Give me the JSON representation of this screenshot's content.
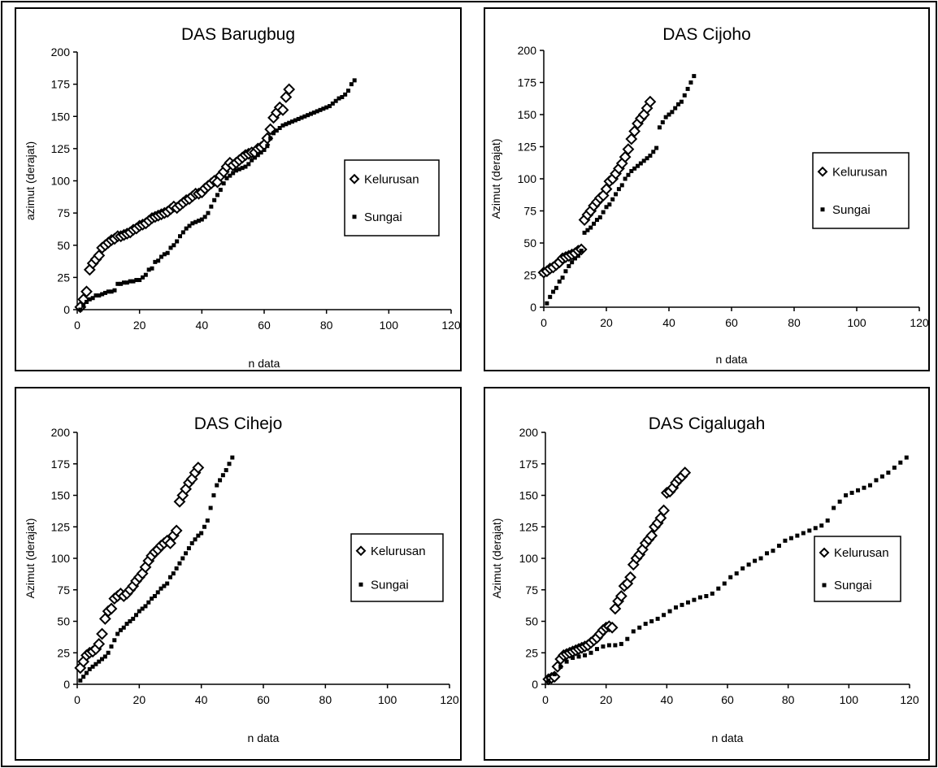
{
  "chart_data": [
    {
      "type": "scatter",
      "title": "DAS Barugbug",
      "xlabel": "n data",
      "ylabel": "azimut (derajat)",
      "xlim": [
        0,
        120
      ],
      "ylim": [
        0,
        200
      ],
      "x_ticks": [
        0,
        20,
        40,
        60,
        80,
        100,
        120
      ],
      "y_ticks": [
        0,
        25,
        50,
        75,
        100,
        125,
        150,
        175,
        200
      ],
      "grid": false,
      "legend": "right",
      "series": [
        {
          "name": "Kelurusan",
          "marker": "open-diamond",
          "x": [
            1,
            2,
            3,
            4,
            5,
            6,
            7,
            8,
            9,
            10,
            11,
            12,
            13,
            14,
            15,
            16,
            17,
            18,
            19,
            20,
            21,
            22,
            23,
            24,
            25,
            26,
            27,
            28,
            29,
            30,
            31,
            32,
            33,
            34,
            35,
            36,
            37,
            38,
            39,
            40,
            41,
            42,
            43,
            44,
            45,
            46,
            47,
            48,
            49,
            50,
            51,
            52,
            53,
            54,
            55,
            56,
            57,
            58,
            59,
            60,
            61,
            62,
            63,
            64,
            65,
            66,
            67,
            68
          ],
          "y": [
            2,
            8,
            14,
            31,
            36,
            39,
            42,
            48,
            50,
            52,
            54,
            55,
            57,
            57,
            58,
            59,
            60,
            62,
            63,
            65,
            66,
            67,
            69,
            71,
            72,
            73,
            74,
            75,
            76,
            78,
            80,
            79,
            81,
            83,
            85,
            86,
            88,
            90,
            90,
            91,
            94,
            96,
            98,
            100,
            99,
            104,
            107,
            111,
            114,
            112,
            114,
            116,
            118,
            120,
            121,
            122,
            122,
            125,
            126,
            128,
            133,
            140,
            149,
            153,
            157,
            155,
            165,
            171
          ],
          "color": "#000000"
        },
        {
          "name": "Sungai",
          "marker": "dot",
          "x": [
            1,
            2,
            3,
            4,
            5,
            6,
            7,
            8,
            9,
            10,
            11,
            12,
            13,
            14,
            15,
            16,
            17,
            18,
            19,
            20,
            21,
            22,
            23,
            24,
            25,
            26,
            27,
            28,
            29,
            30,
            31,
            32,
            33,
            34,
            35,
            36,
            37,
            38,
            39,
            40,
            41,
            42,
            43,
            44,
            45,
            46,
            47,
            48,
            49,
            50,
            51,
            52,
            53,
            54,
            55,
            56,
            57,
            58,
            59,
            60,
            61,
            62,
            63,
            64,
            65,
            66,
            67,
            68,
            69,
            70,
            71,
            72,
            73,
            74,
            75,
            76,
            77,
            78,
            79,
            80,
            81,
            82,
            83,
            84,
            85,
            86,
            87,
            88,
            89
          ],
          "y": [
            0,
            3,
            6,
            8,
            9,
            11,
            11,
            12,
            13,
            14,
            14,
            15,
            20,
            20,
            21,
            21,
            22,
            22,
            23,
            23,
            25,
            27,
            31,
            32,
            37,
            38,
            41,
            43,
            44,
            48,
            50,
            53,
            57,
            60,
            63,
            65,
            67,
            68,
            69,
            70,
            72,
            75,
            80,
            85,
            89,
            93,
            98,
            102,
            104,
            106,
            108,
            109,
            110,
            111,
            113,
            116,
            118,
            120,
            122,
            124,
            127,
            133,
            137,
            139,
            141,
            143,
            144,
            145,
            146,
            147,
            148,
            149,
            150,
            151,
            152,
            153,
            154,
            155,
            156,
            157,
            158,
            160,
            162,
            164,
            165,
            167,
            170,
            175,
            178
          ],
          "color": "#000000"
        }
      ]
    },
    {
      "type": "scatter",
      "title": "DAS Cijoho",
      "xlabel": "n data",
      "ylabel": "Azimut (derajat)",
      "xlim": [
        0,
        120
      ],
      "ylim": [
        0,
        200
      ],
      "x_ticks": [
        0,
        20,
        40,
        60,
        80,
        100,
        120
      ],
      "y_ticks": [
        0,
        25,
        50,
        75,
        100,
        125,
        150,
        175,
        200
      ],
      "grid": false,
      "legend": "right",
      "series": [
        {
          "name": "Kelurusan",
          "marker": "open-diamond",
          "x": [
            0,
            1,
            2,
            3,
            4,
            5,
            6,
            7,
            8,
            9,
            10,
            11,
            12,
            13,
            14,
            15,
            16,
            17,
            18,
            19,
            20,
            21,
            22,
            23,
            24,
            25,
            26,
            27,
            28,
            29,
            30,
            31,
            32,
            33,
            34
          ],
          "y": [
            27,
            28,
            30,
            31,
            33,
            35,
            38,
            39,
            40,
            41,
            42,
            44,
            45,
            68,
            72,
            75,
            79,
            82,
            85,
            87,
            92,
            98,
            100,
            104,
            108,
            112,
            117,
            123,
            131,
            137,
            143,
            147,
            150,
            155,
            160
          ],
          "color": "#000000"
        },
        {
          "name": "Sungai",
          "marker": "dot",
          "x": [
            1,
            2,
            3,
            4,
            5,
            6,
            7,
            8,
            9,
            10,
            11,
            12,
            13,
            14,
            15,
            16,
            17,
            18,
            19,
            20,
            21,
            22,
            23,
            24,
            25,
            26,
            27,
            28,
            29,
            30,
            31,
            32,
            33,
            34,
            35,
            36,
            37,
            38,
            39,
            40,
            41,
            42,
            43,
            44,
            45,
            46,
            47,
            48
          ],
          "y": [
            3,
            8,
            12,
            15,
            20,
            23,
            28,
            32,
            35,
            38,
            40,
            44,
            58,
            60,
            62,
            65,
            68,
            70,
            74,
            78,
            80,
            84,
            88,
            92,
            95,
            100,
            103,
            106,
            108,
            110,
            112,
            114,
            116,
            118,
            121,
            124,
            140,
            144,
            148,
            150,
            152,
            155,
            158,
            160,
            165,
            170,
            175,
            180
          ],
          "color": "#000000"
        }
      ]
    },
    {
      "type": "scatter",
      "title": "DAS Cihejo",
      "xlabel": "n data",
      "ylabel": "Azimut (derajat)",
      "xlim": [
        0,
        120
      ],
      "ylim": [
        0,
        200
      ],
      "x_ticks": [
        0,
        20,
        40,
        60,
        80,
        100,
        120
      ],
      "y_ticks": [
        0,
        25,
        50,
        75,
        100,
        125,
        150,
        175,
        200
      ],
      "grid": false,
      "legend": "right",
      "series": [
        {
          "name": "Kelurusan",
          "marker": "open-diamond",
          "x": [
            1,
            2,
            3,
            4,
            5,
            6,
            7,
            8,
            9,
            10,
            11,
            12,
            13,
            14,
            15,
            16,
            17,
            18,
            19,
            20,
            21,
            22,
            23,
            24,
            25,
            26,
            27,
            28,
            29,
            30,
            31,
            32,
            33,
            34,
            35,
            36,
            37,
            38,
            39
          ],
          "y": [
            13,
            18,
            23,
            25,
            26,
            28,
            32,
            40,
            52,
            58,
            60,
            68,
            70,
            72,
            70,
            72,
            75,
            78,
            82,
            85,
            88,
            93,
            98,
            102,
            105,
            107,
            110,
            112,
            114,
            112,
            118,
            122,
            145,
            150,
            155,
            160,
            163,
            168,
            172
          ],
          "color": "#000000"
        },
        {
          "name": "Sungai",
          "marker": "dot",
          "x": [
            1,
            2,
            3,
            4,
            5,
            6,
            7,
            8,
            9,
            10,
            11,
            12,
            13,
            14,
            15,
            16,
            17,
            18,
            19,
            20,
            21,
            22,
            23,
            24,
            25,
            26,
            27,
            28,
            29,
            30,
            31,
            32,
            33,
            34,
            35,
            36,
            37,
            38,
            39,
            40,
            41,
            42,
            43,
            44,
            45,
            46,
            47,
            48,
            49,
            50
          ],
          "y": [
            3,
            6,
            9,
            12,
            14,
            16,
            18,
            20,
            22,
            25,
            30,
            35,
            40,
            43,
            45,
            48,
            50,
            52,
            55,
            58,
            60,
            62,
            65,
            68,
            70,
            73,
            76,
            78,
            80,
            85,
            88,
            92,
            96,
            100,
            104,
            108,
            112,
            115,
            118,
            120,
            125,
            130,
            140,
            150,
            158,
            162,
            166,
            170,
            175,
            180
          ],
          "color": "#000000"
        }
      ]
    },
    {
      "type": "scatter",
      "title": "DAS Cigalugah",
      "xlabel": "n data",
      "ylabel": "Azimut (derajat)",
      "xlim": [
        0,
        120
      ],
      "ylim": [
        0,
        200
      ],
      "x_ticks": [
        0,
        20,
        40,
        60,
        80,
        100,
        120
      ],
      "y_ticks": [
        0,
        25,
        50,
        75,
        100,
        125,
        150,
        175,
        200
      ],
      "grid": false,
      "legend": "right",
      "series": [
        {
          "name": "Kelurusan",
          "marker": "open-diamond",
          "x": [
            1,
            2,
            3,
            4,
            5,
            6,
            7,
            8,
            9,
            10,
            11,
            12,
            13,
            14,
            15,
            16,
            17,
            18,
            19,
            20,
            21,
            22,
            23,
            24,
            25,
            26,
            27,
            28,
            29,
            30,
            31,
            32,
            33,
            34,
            35,
            36,
            37,
            38,
            39,
            40,
            41,
            42,
            43,
            44,
            45,
            46
          ],
          "y": [
            4,
            5,
            6,
            14,
            20,
            23,
            24,
            25,
            26,
            27,
            28,
            29,
            30,
            31,
            33,
            35,
            37,
            40,
            43,
            45,
            46,
            45,
            60,
            66,
            70,
            78,
            80,
            85,
            95,
            100,
            103,
            107,
            112,
            115,
            118,
            125,
            128,
            132,
            138,
            152,
            153,
            156,
            160,
            163,
            165,
            168
          ],
          "color": "#000000"
        },
        {
          "name": "Sungai",
          "marker": "dot",
          "x": [
            1,
            3,
            5,
            7,
            9,
            11,
            13,
            15,
            17,
            19,
            21,
            23,
            25,
            27,
            29,
            31,
            33,
            35,
            37,
            39,
            41,
            43,
            45,
            47,
            49,
            51,
            53,
            55,
            57,
            59,
            61,
            63,
            65,
            67,
            69,
            71,
            73,
            75,
            77,
            79,
            81,
            83,
            85,
            87,
            89,
            91,
            93,
            95,
            97,
            99,
            101,
            103,
            105,
            107,
            109,
            111,
            113,
            115,
            117,
            119
          ],
          "y": [
            3,
            8,
            14,
            18,
            21,
            22,
            23,
            25,
            28,
            30,
            31,
            31,
            32,
            36,
            42,
            45,
            48,
            50,
            52,
            55,
            58,
            61,
            63,
            65,
            67,
            69,
            70,
            72,
            76,
            80,
            85,
            88,
            92,
            95,
            98,
            100,
            104,
            106,
            110,
            114,
            116,
            118,
            120,
            122,
            124,
            126,
            130,
            140,
            145,
            150,
            152,
            154,
            156,
            158,
            162,
            165,
            168,
            172,
            176,
            180
          ],
          "color": "#000000"
        }
      ]
    }
  ]
}
